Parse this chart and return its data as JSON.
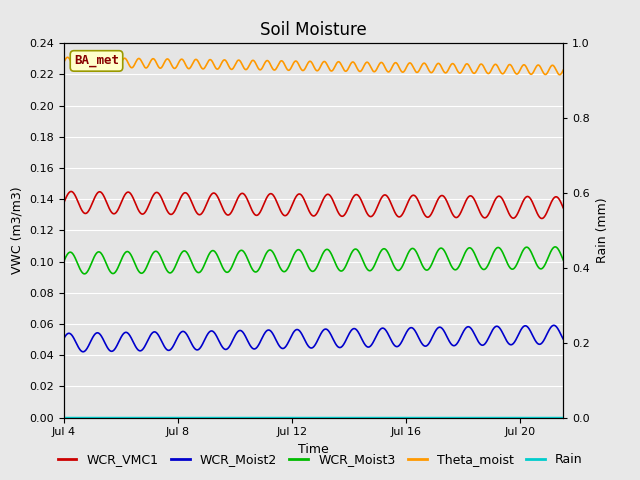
{
  "title": "Soil Moisture",
  "xlabel": "Time",
  "ylabel_left": "VWC (m3/m3)",
  "ylabel_right": "Rain (mm)",
  "xlim": [
    0,
    17.5
  ],
  "ylim_left": [
    0.0,
    0.24
  ],
  "ylim_right": [
    0.0,
    1.0
  ],
  "yticks_left": [
    0.0,
    0.02,
    0.04,
    0.06,
    0.08,
    0.1,
    0.12,
    0.14,
    0.16,
    0.18,
    0.2,
    0.22,
    0.24
  ],
  "yticks_right": [
    0.0,
    0.2,
    0.4,
    0.6,
    0.8,
    1.0
  ],
  "xtick_positions": [
    0,
    4,
    8,
    12,
    16
  ],
  "xtick_labels": [
    "Jul 4",
    "Jul 8",
    "Jul 12",
    "Jul 16",
    "Jul 20"
  ],
  "background_color": "#e8e8e8",
  "axes_bg_color": "#e5e5e5",
  "grid_color": "#ffffff",
  "legend_labels": [
    "WCR_VMC1",
    "WCR_Moist2",
    "WCR_Moist3",
    "Theta_moist",
    "Rain"
  ],
  "legend_colors": [
    "#cc0000",
    "#0000cc",
    "#00bb00",
    "#ff9900",
    "#00cccc"
  ],
  "annotation_text": "BA_met",
  "annotation_bbox_facecolor": "#ffffcc",
  "annotation_bbox_edgecolor": "#999900",
  "annotation_text_color": "#880000",
  "title_fontsize": 12,
  "label_fontsize": 9,
  "tick_fontsize": 8,
  "legend_fontsize": 9,
  "linewidth": 1.2,
  "fig_bg_color": "#e8e8e8",
  "series_red": {
    "base": 0.138,
    "amp": 0.007,
    "freq_cpd": 1.0,
    "phase": 0.0,
    "trend": -0.0002
  },
  "series_blue": {
    "base": 0.048,
    "amp": 0.006,
    "freq_cpd": 1.0,
    "phase": 0.5,
    "trend": 0.0003
  },
  "series_green": {
    "base": 0.099,
    "amp": 0.007,
    "freq_cpd": 1.0,
    "phase": 0.2,
    "trend": 0.0002
  },
  "series_orange": {
    "base": 0.228,
    "amp": 0.003,
    "freq_cpd": 2.0,
    "phase": 0.0,
    "trend": -0.0003
  },
  "series_cyan": {
    "base": 0.0,
    "amp": 0.0,
    "freq_cpd": 0.0,
    "phase": 0.0,
    "trend": 0.0
  }
}
